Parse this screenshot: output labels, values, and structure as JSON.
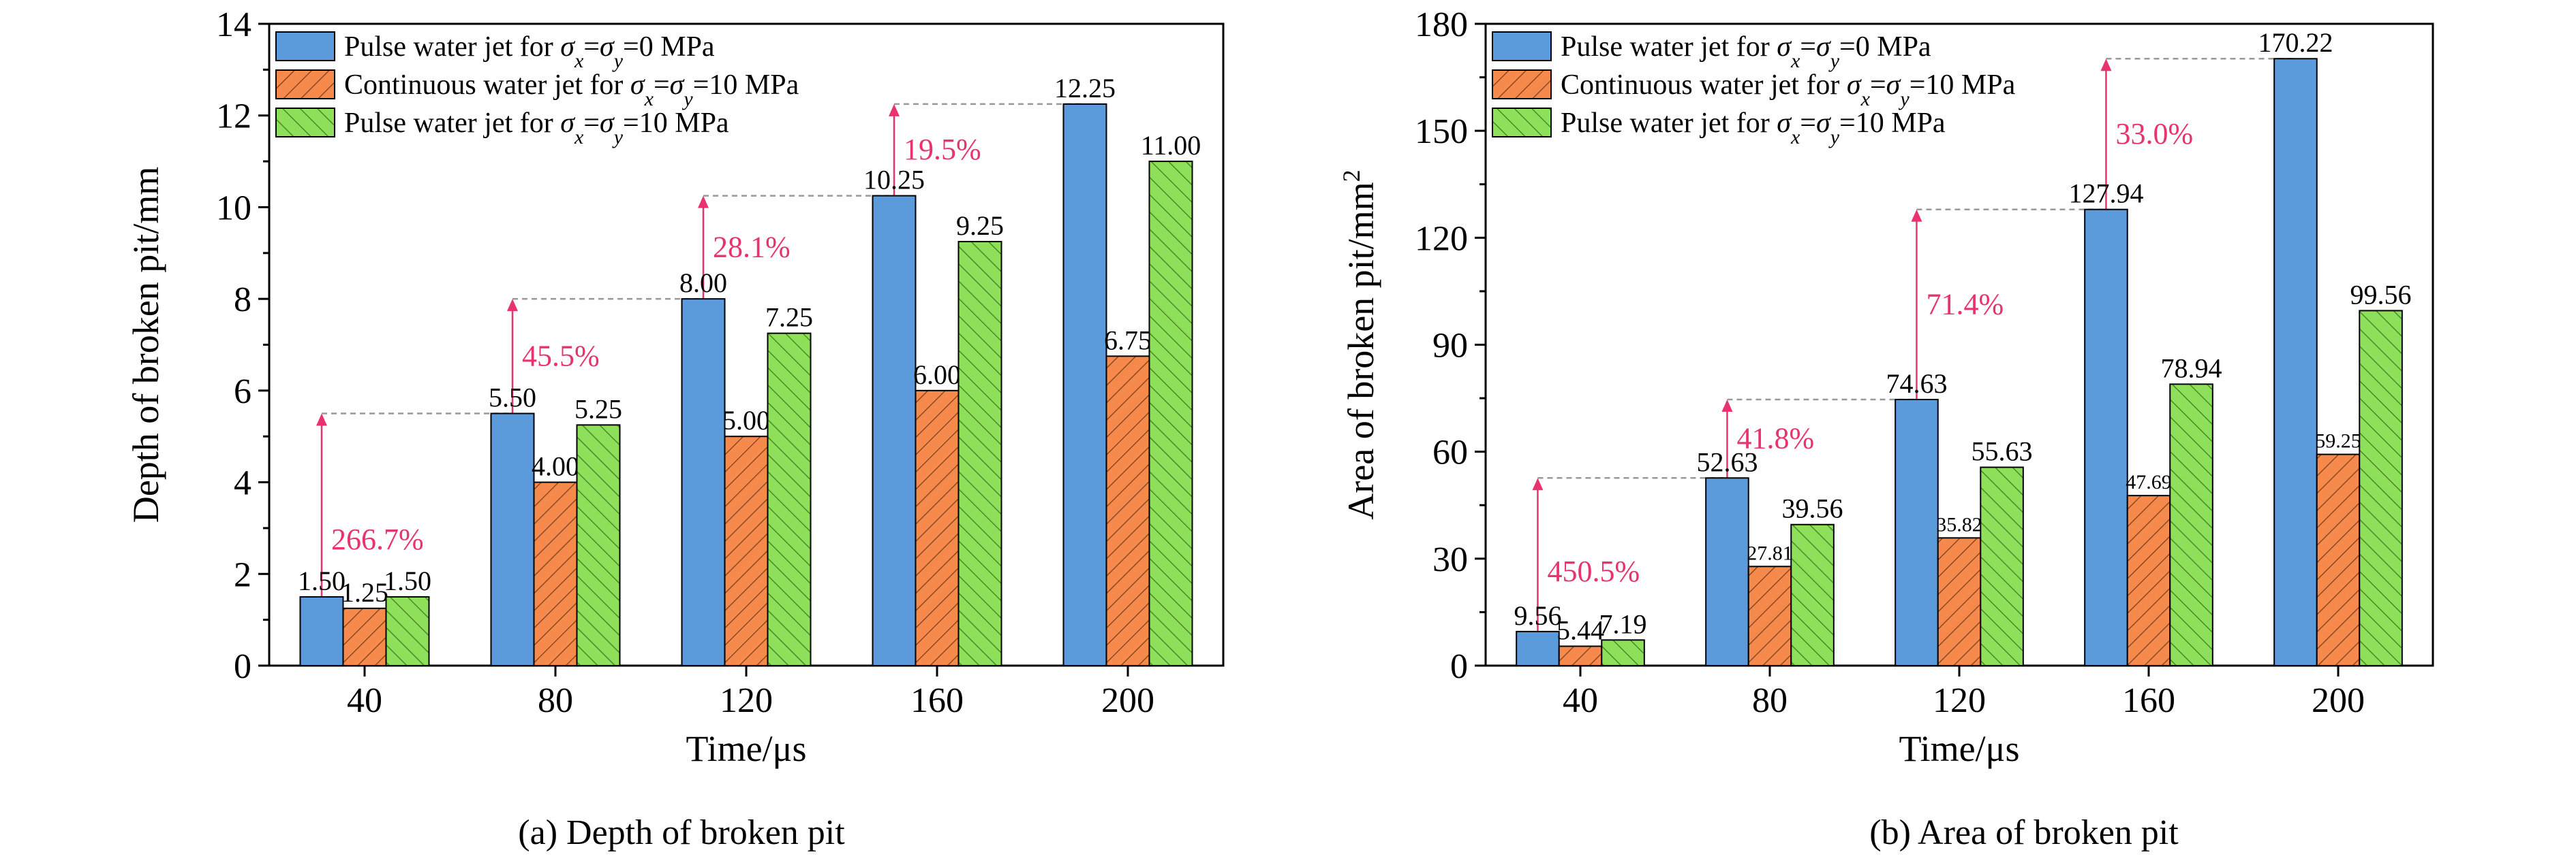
{
  "colors": {
    "series": [
      "#5b9bdc",
      "#f58a4c",
      "#8ee05a"
    ],
    "hatch": "#7a3d1a",
    "annotation": "#e8336d",
    "guide": "#999999"
  },
  "legend_labels": [
    {
      "pre": "Pulse water jet for ",
      "mid": "=",
      "post": "=0 MPa"
    },
    {
      "pre": "Continuous water jet for ",
      "mid": "=",
      "post": "=10 MPa"
    },
    {
      "pre": "Pulse water jet for ",
      "mid": "=",
      "post": "=10 MPa"
    }
  ],
  "chart_data": [
    {
      "type": "bar",
      "caption": "(a) Depth of broken pit",
      "categories": [
        "40",
        "80",
        "120",
        "160",
        "200"
      ],
      "xlabel": "Time/μs",
      "ylabel": "Depth of broken pit/mm",
      "ylim": [
        0,
        14
      ],
      "yticks": [
        0,
        2,
        4,
        6,
        8,
        10,
        12,
        14
      ],
      "series": [
        {
          "values": [
            1.5,
            5.5,
            8.0,
            10.25,
            12.25
          ],
          "labels": [
            "1.50",
            "5.50",
            "8.00",
            "10.25",
            "12.25"
          ]
        },
        {
          "values": [
            1.25,
            4.0,
            5.0,
            6.0,
            6.75
          ],
          "labels": [
            "1.25",
            "4.00",
            "5.00",
            "6.00",
            "6.75"
          ]
        },
        {
          "values": [
            1.5,
            5.25,
            7.25,
            9.25,
            11.0
          ],
          "labels": [
            "1.50",
            "5.25",
            "7.25",
            "9.25",
            "11.00"
          ]
        }
      ],
      "annotations": [
        {
          "text": "266.7%",
          "category": 0,
          "from": 0,
          "to": 5.5
        },
        {
          "text": "45.5%",
          "category": 1,
          "from": 5.5,
          "to": 8.0
        },
        {
          "text": "28.1%",
          "category": 2,
          "from": 8.0,
          "to": 10.25
        },
        {
          "text": "19.5%",
          "category": 3,
          "from": 10.25,
          "to": 12.25
        }
      ]
    },
    {
      "type": "bar",
      "caption": "(b) Area of broken pit",
      "categories": [
        "40",
        "80",
        "120",
        "160",
        "200"
      ],
      "xlabel": "Time/μs",
      "ylabel": "Area of broken pit/mm",
      "ylabel_sup": "2",
      "ylim": [
        0,
        180
      ],
      "yticks": [
        0,
        30,
        60,
        90,
        120,
        150,
        180
      ],
      "series": [
        {
          "values": [
            9.56,
            52.63,
            74.63,
            127.94,
            170.22
          ],
          "labels": [
            "9.56",
            "52.63",
            "74.63",
            "127.94",
            "170.22"
          ]
        },
        {
          "values": [
            5.44,
            27.81,
            35.82,
            47.69,
            59.25
          ],
          "labels": [
            "5.44",
            "27.81",
            "35.82",
            "47.69",
            "59.25"
          ]
        },
        {
          "values": [
            7.19,
            39.56,
            55.63,
            78.94,
            99.56
          ],
          "labels": [
            "7.19",
            "39.56",
            "55.63",
            "78.94",
            "99.56"
          ]
        }
      ],
      "annotations": [
        {
          "text": "450.5%",
          "category": 0,
          "from": 0,
          "to": 52.63
        },
        {
          "text": "41.8%",
          "category": 1,
          "from": 52.63,
          "to": 74.63
        },
        {
          "text": "71.4%",
          "category": 2,
          "from": 74.63,
          "to": 127.94
        },
        {
          "text": "33.0%",
          "category": 3,
          "from": 127.94,
          "to": 170.22
        }
      ]
    }
  ]
}
